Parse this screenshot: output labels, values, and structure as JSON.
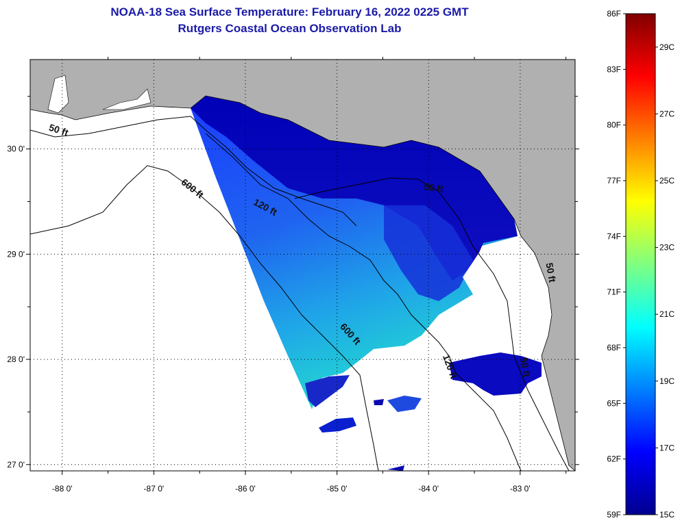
{
  "title": {
    "line1": "NOAA-18 Sea Surface Temperature:  February 16, 2022 0225 GMT",
    "line2": "Rutgers Coastal Ocean Observation Lab"
  },
  "map": {
    "lon_range": [
      -88.35,
      -82.4
    ],
    "lat_range": [
      26.94,
      30.85
    ],
    "x_ticks": [
      {
        "value": -88,
        "label": "-88 0'"
      },
      {
        "value": -87,
        "label": "-87 0'"
      },
      {
        "value": -86,
        "label": "-86 0'"
      },
      {
        "value": -85,
        "label": "-85 0'"
      },
      {
        "value": -84,
        "label": "-84 0'"
      },
      {
        "value": -83,
        "label": "-83 0'"
      }
    ],
    "y_ticks": [
      {
        "value": 30,
        "label": "30 0'"
      },
      {
        "value": 29,
        "label": "29 0'"
      },
      {
        "value": 28,
        "label": "28 0'"
      },
      {
        "value": 27,
        "label": "27 0'"
      }
    ],
    "grid": "dotted",
    "land_color": "#b0b0b0",
    "no_data_color": "#ffffff",
    "contour_labels": [
      {
        "text": "50 ft",
        "lon": -88.05,
        "lat": 30.15,
        "angle": 18
      },
      {
        "text": "600 ft",
        "lon": -86.6,
        "lat": 29.6,
        "angle": 38
      },
      {
        "text": "120 ft",
        "lon": -85.8,
        "lat": 29.42,
        "angle": 28
      },
      {
        "text": "50 ft",
        "lon": -83.95,
        "lat": 29.6,
        "angle": 8
      },
      {
        "text": "600 ft",
        "lon": -84.88,
        "lat": 28.22,
        "angle": 48
      },
      {
        "text": "120 ft",
        "lon": -83.8,
        "lat": 27.92,
        "angle": 70
      },
      {
        "text": "50 ft",
        "lon": -82.7,
        "lat": 28.82,
        "angle": 80
      },
      {
        "text": "50 ft",
        "lon": -82.98,
        "lat": 27.92,
        "angle": 80
      }
    ]
  },
  "colorbar": {
    "f_labels": [
      "86F",
      "83F",
      "80F",
      "77F",
      "74F",
      "71F",
      "68F",
      "65F",
      "62F",
      "59F"
    ],
    "c_labels": [
      "29C",
      "27C",
      "25C",
      "23C",
      "21C",
      "19C",
      "17C",
      "15C"
    ],
    "colors": [
      "#800000",
      "#ff0000",
      "#ff8000",
      "#ffff00",
      "#80ff80",
      "#00ffff",
      "#0080ff",
      "#0000ff",
      "#00008f"
    ]
  }
}
